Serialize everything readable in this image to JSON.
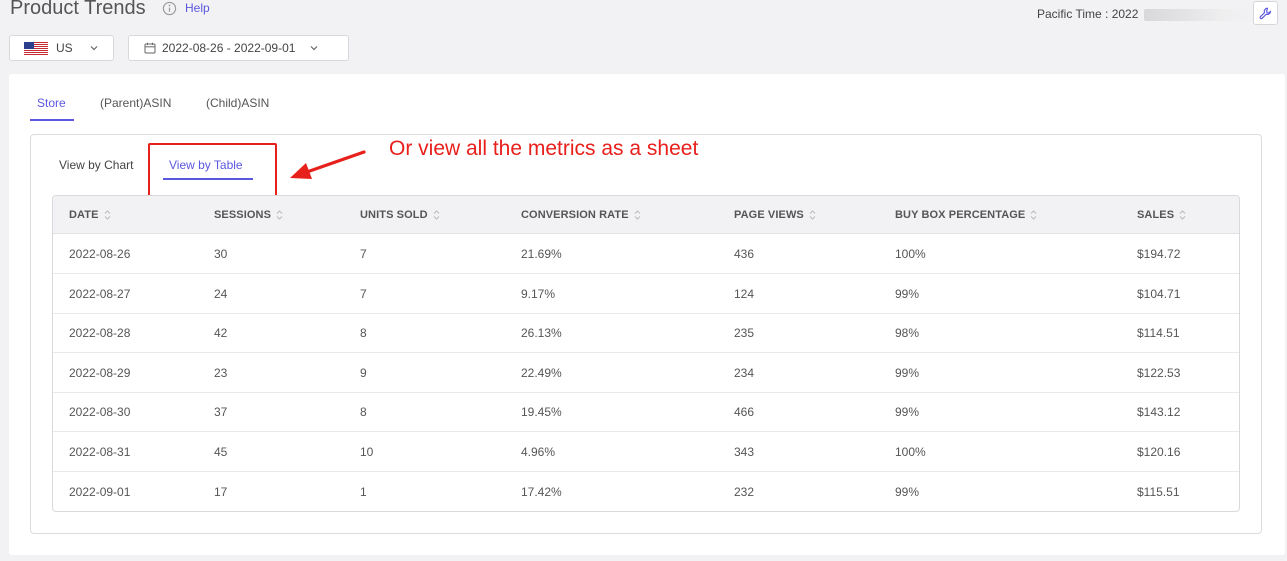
{
  "header": {
    "title": "Product Trends",
    "help_label": "Help",
    "pacific_time_label": "Pacific Time :",
    "pacific_time_value": "2022"
  },
  "filters": {
    "country": "US",
    "date_range": "2022-08-26 - 2022-09-01"
  },
  "tabs": [
    {
      "label": "Store",
      "active": true
    },
    {
      "label": "(Parent)ASIN",
      "active": false
    },
    {
      "label": "(Child)ASIN",
      "active": false
    }
  ],
  "view_tabs": [
    {
      "label": "View by Chart",
      "active": false
    },
    {
      "label": "View by Table",
      "active": true
    }
  ],
  "annotation": {
    "text": "Or view all the metrics as a sheet"
  },
  "table": {
    "columns": [
      "DATE",
      "SESSIONS",
      "UNITS SOLD",
      "CONVERSION RATE",
      "PAGE VIEWS",
      "BUY BOX PERCENTAGE",
      "SALES"
    ],
    "rows": [
      [
        "2022-08-26",
        "30",
        "7",
        "21.69%",
        "436",
        "100%",
        "$194.72"
      ],
      [
        "2022-08-27",
        "24",
        "7",
        "9.17%",
        "124",
        "99%",
        "$104.71"
      ],
      [
        "2022-08-28",
        "42",
        "8",
        "26.13%",
        "235",
        "98%",
        "$114.51"
      ],
      [
        "2022-08-29",
        "23",
        "9",
        "22.49%",
        "234",
        "99%",
        "$122.53"
      ],
      [
        "2022-08-30",
        "37",
        "8",
        "19.45%",
        "466",
        "99%",
        "$143.12"
      ],
      [
        "2022-08-31",
        "45",
        "10",
        "4.96%",
        "343",
        "100%",
        "$120.16"
      ],
      [
        "2022-09-01",
        "17",
        "1",
        "17.42%",
        "232",
        "99%",
        "$115.51"
      ]
    ]
  },
  "colors": {
    "accent": "#5b57e0",
    "annotation": "#e8201c"
  }
}
